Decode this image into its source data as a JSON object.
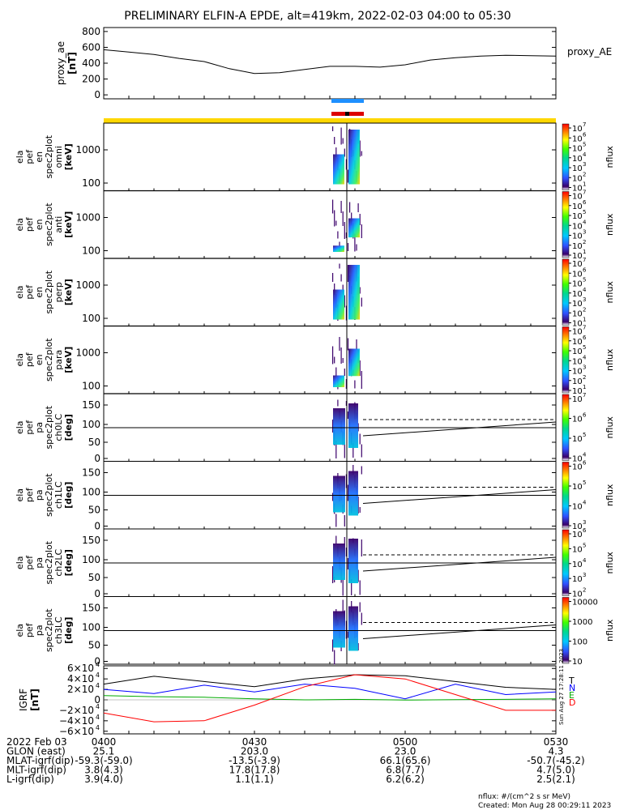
{
  "title": "PRELIMINARY ELFIN-A EPDE, alt=419km, 2022-02-03 04:00 to 05:30",
  "chart_data": {
    "type": "line",
    "time_range": [
      "04:00",
      "05:30"
    ],
    "ae_panel": {
      "ylabel": [
        "proxy_ae",
        "[nT]"
      ],
      "yticks": [
        "800",
        "600",
        "400",
        "200",
        "0"
      ],
      "ylim": [
        -50,
        850
      ],
      "legend": "proxy_AE",
      "series": {
        "name": "proxy_AE",
        "x_min": [
          0,
          5,
          10,
          15,
          20,
          25,
          30,
          35,
          40,
          45,
          50,
          55,
          60,
          65,
          70,
          75,
          80,
          85,
          90
        ],
        "y": [
          570,
          540,
          510,
          460,
          420,
          330,
          270,
          280,
          320,
          360,
          360,
          350,
          380,
          440,
          470,
          490,
          500,
          495,
          490
        ]
      }
    },
    "spectrogram_panels": [
      {
        "label": [
          "ela",
          "pef",
          "en",
          "spec2plot",
          "omni",
          "[keV]"
        ],
        "yticks": [
          "1000",
          "100"
        ],
        "cbar_ticks": [
          "10",
          "10",
          "10",
          "10",
          "10",
          "10",
          "10"
        ],
        "cbar_exps": [
          "7",
          "6",
          "5",
          "4",
          "3",
          "2",
          "1"
        ]
      },
      {
        "label": [
          "ela",
          "pef",
          "en",
          "spec2plot",
          "anti",
          "[keV]"
        ],
        "yticks": [
          "1000",
          "100"
        ],
        "cbar_ticks": [
          "10",
          "10",
          "10",
          "10",
          "10",
          "10",
          "10"
        ],
        "cbar_exps": [
          "7",
          "6",
          "5",
          "4",
          "3",
          "2",
          "1"
        ]
      },
      {
        "label": [
          "ela",
          "pef",
          "en",
          "spec2plot",
          "perp",
          "[keV]"
        ],
        "yticks": [
          "1000",
          "100"
        ],
        "cbar_ticks": [
          "10",
          "10",
          "10",
          "10",
          "10",
          "10",
          "10"
        ],
        "cbar_exps": [
          "7",
          "6",
          "5",
          "4",
          "3",
          "2",
          "1"
        ]
      },
      {
        "label": [
          "ela",
          "pef",
          "en",
          "spec2plot",
          "para",
          "[keV]"
        ],
        "yticks": [
          "1000",
          "100"
        ],
        "cbar_ticks": [
          "10",
          "10",
          "10",
          "10",
          "10",
          "10",
          "10"
        ],
        "cbar_exps": [
          "7",
          "6",
          "5",
          "4",
          "3",
          "2",
          "1"
        ]
      },
      {
        "label": [
          "ela",
          "pef",
          "pa",
          "spec2plot",
          "ch0LC",
          "[deg]"
        ],
        "yticks": [
          "150",
          "100",
          "50",
          "0"
        ],
        "cbar_ticks": [
          "10",
          "10",
          "10",
          "10"
        ],
        "cbar_exps": [
          "7",
          "6",
          "5",
          "4"
        ]
      },
      {
        "label": [
          "ela",
          "pef",
          "pa",
          "spec2plot",
          "ch1LC",
          "[deg]"
        ],
        "yticks": [
          "150",
          "100",
          "50",
          "0"
        ],
        "cbar_ticks": [
          "10",
          "10",
          "10",
          "10"
        ],
        "cbar_exps": [
          "6",
          "5",
          "4",
          "3"
        ]
      },
      {
        "label": [
          "ela",
          "pef",
          "pa",
          "spec2plot",
          "ch2LC",
          "[deg]"
        ],
        "yticks": [
          "150",
          "100",
          "50",
          "0"
        ],
        "cbar_ticks": [
          "10",
          "10",
          "10",
          "10",
          "10"
        ],
        "cbar_exps": [
          "6",
          "5",
          "4",
          "3",
          "2"
        ]
      },
      {
        "label": [
          "ela",
          "pef",
          "pa",
          "spec2plot",
          "ch3LC",
          "[deg]"
        ],
        "yticks": [
          "150",
          "100",
          "50",
          "0"
        ],
        "cbar_ticks": [
          "10000",
          "1000",
          "100",
          "10"
        ],
        "cbar_exps": []
      }
    ],
    "colorbar_label": "nflux",
    "igrf_panel": {
      "ylabel": [
        "IGRF",
        "[nT]"
      ],
      "yticks": [
        "6×10",
        "4×10",
        "2×10",
        "0",
        "−2×10",
        "−4×10",
        "−6×10"
      ],
      "ytick_exp": "4",
      "ylim": [
        -65000,
        65000
      ],
      "legend": [
        "T",
        "N",
        "E",
        "D"
      ],
      "legend_colors": [
        "#000000",
        "#0000ff",
        "#00aa00",
        "#ff0000"
      ],
      "series": [
        {
          "name": "T",
          "color": "#000000",
          "x_min": [
            0,
            10,
            20,
            30,
            40,
            50,
            60,
            70,
            80,
            90
          ],
          "y": [
            30000,
            45000,
            35000,
            25000,
            40000,
            48000,
            46000,
            35000,
            24000,
            20000
          ]
        },
        {
          "name": "N",
          "color": "#0000ff",
          "x_min": [
            0,
            10,
            20,
            30,
            40,
            50,
            60,
            70,
            80,
            90
          ],
          "y": [
            20000,
            12000,
            28000,
            15000,
            30000,
            22000,
            2000,
            30000,
            10000,
            15000
          ]
        },
        {
          "name": "E",
          "color": "#00aa00",
          "x_min": [
            0,
            10,
            20,
            30,
            40,
            50,
            60,
            70,
            80,
            90
          ],
          "y": [
            8000,
            6000,
            5000,
            2000,
            0,
            1000,
            -500,
            500,
            1000,
            2000
          ]
        },
        {
          "name": "D",
          "color": "#ff0000",
          "x_min": [
            0,
            10,
            20,
            30,
            40,
            50,
            60,
            70,
            80,
            90
          ],
          "y": [
            -25000,
            -42000,
            -40000,
            -10000,
            25000,
            48000,
            40000,
            10000,
            -20000,
            -20000
          ]
        }
      ]
    },
    "bottom_labels": {
      "rows": [
        {
          "label": "2022 Feb 03",
          "values": [
            "0400",
            "0430",
            "0500",
            "0530"
          ]
        },
        {
          "label": "GLON (east)",
          "values": [
            "25.1",
            "203.0",
            "23.0",
            "4.3"
          ]
        },
        {
          "label": "MLAT-igrf(dip)",
          "values": [
            "-59.3(-59.0)",
            "-13.5(-3.9)",
            "66.1(65.6)",
            "-50.7(-45.2)"
          ]
        },
        {
          "label": "MLT-igrf(dip)",
          "values": [
            "3.8(4.3)",
            "17.8(17.8)",
            "6.8(7.7)",
            "4.7(5.0)"
          ]
        },
        {
          "label": "L-igrf(dip)",
          "values": [
            "3.9(4.0)",
            "1.1(1.1)",
            "6.2(6.2)",
            "2.5(2.1)"
          ]
        }
      ]
    },
    "footer": {
      "units": "nflux: #/(cm^2 s sr MeV)",
      "created": "Created: Mon Aug 28 00:29:11 2023",
      "side_stamp": "Sun Aug 27 17:28:11 2023"
    }
  }
}
